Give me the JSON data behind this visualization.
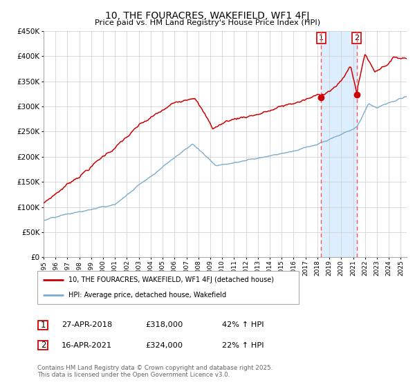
{
  "title": "10, THE FOURACRES, WAKEFIELD, WF1 4FJ",
  "subtitle": "Price paid vs. HM Land Registry's House Price Index (HPI)",
  "ylim": [
    0,
    450000
  ],
  "yticks": [
    0,
    50000,
    100000,
    150000,
    200000,
    250000,
    300000,
    350000,
    400000,
    450000
  ],
  "x_start_year": 1995,
  "x_end_year": 2025,
  "sale1_date": "27-APR-2018",
  "sale1_price": 318000,
  "sale1_label": "42% ↑ HPI",
  "sale1_x": 2018.32,
  "sale2_date": "16-APR-2021",
  "sale2_price": 324000,
  "sale2_label": "22% ↑ HPI",
  "sale2_x": 2021.3,
  "red_line_color": "#cc0000",
  "blue_line_color": "#7aadcf",
  "highlight_color": "#ddeeff",
  "dashed_line_color": "#ff5555",
  "marker_color": "#cc0000",
  "legend1_label": "10, THE FOURACRES, WAKEFIELD, WF1 4FJ (detached house)",
  "legend2_label": "HPI: Average price, detached house, Wakefield",
  "annotation1": "1",
  "annotation2": "2",
  "footer": "Contains HM Land Registry data © Crown copyright and database right 2025.\nThis data is licensed under the Open Government Licence v3.0.",
  "background_color": "#ffffff",
  "grid_color": "#cccccc"
}
